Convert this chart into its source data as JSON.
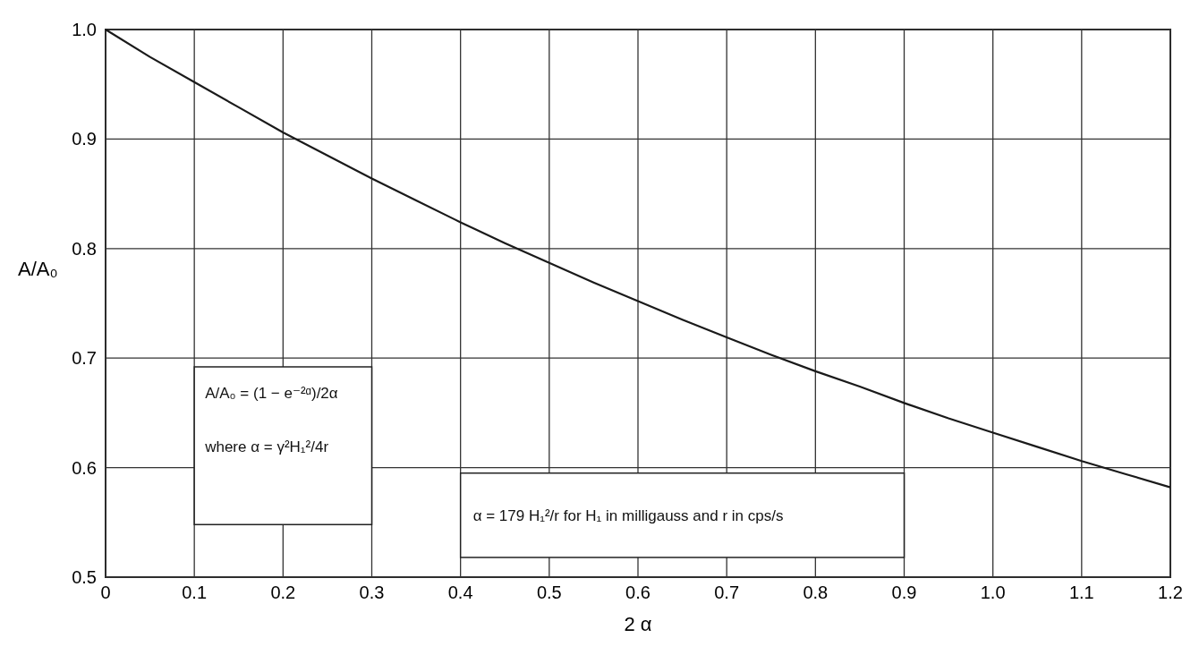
{
  "chart_data": {
    "type": "line",
    "xlabel": "2 α",
    "ylabel": "A/A₀",
    "x": [
      0,
      0.05,
      0.1,
      0.15,
      0.2,
      0.25,
      0.3,
      0.35,
      0.4,
      0.45,
      0.5,
      0.55,
      0.6,
      0.65,
      0.7,
      0.75,
      0.8,
      0.85,
      0.9,
      0.95,
      1.0,
      1.05,
      1.1,
      1.15,
      1.2
    ],
    "series": [
      {
        "color": "#1a1a1a",
        "values": [
          1.0,
          0.975,
          0.952,
          0.929,
          0.906,
          0.885,
          0.864,
          0.844,
          0.824,
          0.805,
          0.787,
          0.769,
          0.752,
          0.735,
          0.719,
          0.703,
          0.688,
          0.674,
          0.659,
          0.645,
          0.632,
          0.619,
          0.606,
          0.594,
          0.582
        ]
      }
    ],
    "xlim": [
      0,
      1.2
    ],
    "xticks": [
      0,
      0.1,
      0.2,
      0.3,
      0.4,
      0.5,
      0.6,
      0.7,
      0.8,
      0.9,
      {
        "value": 1,
        "label": "1.0"
      },
      1.1,
      1.2
    ],
    "ylim": [
      0.5,
      1.0
    ],
    "yticks": [
      0.5,
      0.6,
      0.7,
      0.8,
      0.9,
      {
        "value": 1,
        "label": "1.0"
      }
    ],
    "grid": true,
    "line_style": "solid",
    "marker": "none",
    "annotations": [
      "A/A₀ = (1 − e⁻²ᵅ)/2α",
      "where α = γ²H₁²/4r",
      "α = 179 H₁²/r for H₁ in milligauss and r in cps/s"
    ]
  }
}
